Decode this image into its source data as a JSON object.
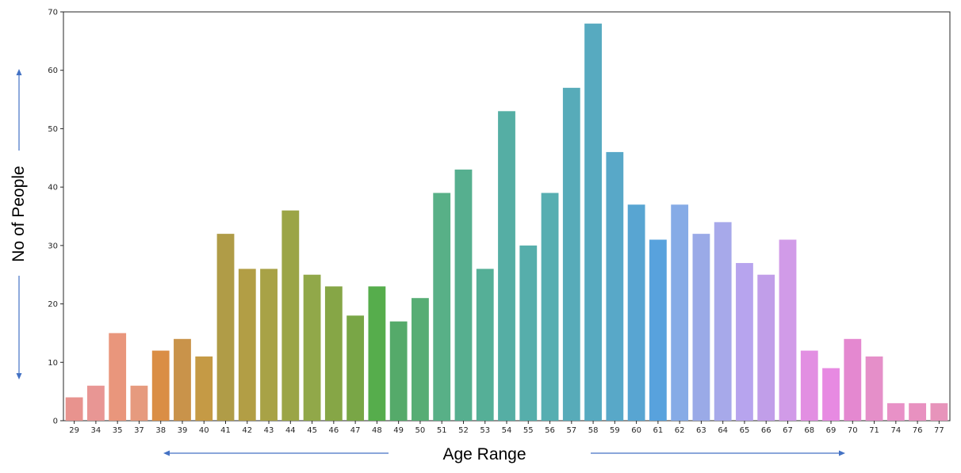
{
  "chart_data": {
    "type": "bar",
    "categories": [
      "29",
      "34",
      "35",
      "37",
      "38",
      "39",
      "40",
      "41",
      "42",
      "43",
      "44",
      "45",
      "46",
      "47",
      "48",
      "49",
      "50",
      "51",
      "52",
      "53",
      "54",
      "55",
      "56",
      "57",
      "58",
      "59",
      "60",
      "61",
      "62",
      "63",
      "64",
      "65",
      "66",
      "67",
      "68",
      "69",
      "70",
      "71",
      "74",
      "76",
      "77"
    ],
    "values": [
      4,
      6,
      15,
      6,
      12,
      14,
      11,
      32,
      26,
      26,
      36,
      25,
      23,
      18,
      23,
      17,
      21,
      39,
      43,
      26,
      53,
      30,
      39,
      57,
      68,
      46,
      37,
      31,
      37,
      32,
      34,
      27,
      25,
      31,
      12,
      9,
      14,
      11,
      3,
      3,
      3
    ],
    "colors": [
      "#e8938e",
      "#e89694",
      "#e9967c",
      "#e69a7e",
      "#da8e45",
      "#c9934a",
      "#c59a45",
      "#b09c47",
      "#b29e45",
      "#a8a246",
      "#9ba546",
      "#91a849",
      "#86a646",
      "#79a646",
      "#56ad4c",
      "#55aa6a",
      "#57ad74",
      "#58b087",
      "#56af8f",
      "#55af97",
      "#55aea4",
      "#56aeab",
      "#57aeb1",
      "#57abb9",
      "#57aac0",
      "#58a8c8",
      "#58a5d2",
      "#58a2dd",
      "#86abe6",
      "#9aaae7",
      "#a7a9ea",
      "#b7a4ee",
      "#c19ee9",
      "#d19be8",
      "#e28fe2",
      "#e78ae2",
      "#e488d0",
      "#e58fc9",
      "#e891c7",
      "#e891c0",
      "#e794bb"
    ],
    "xlabel": "Age Range",
    "ylabel": "No of People",
    "ylim": [
      0,
      70
    ],
    "yticks": [
      0,
      10,
      20,
      30,
      40,
      50,
      60,
      70
    ],
    "grid": false
  }
}
